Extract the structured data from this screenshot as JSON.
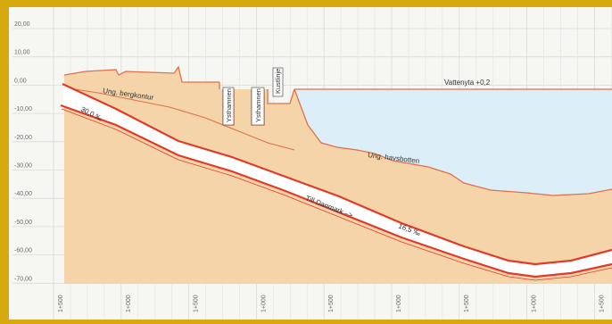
{
  "diagram": {
    "y_ticks": [
      "20,00",
      "10,00",
      "0,00",
      "-10,00",
      "-20,00",
      "-30,00",
      "-40,00",
      "-50,00",
      "-60,00",
      "-70,00"
    ],
    "x_ticks": [
      "1+500",
      "1+000",
      "1+500",
      "1+000",
      "1+500",
      "1+000",
      "1+500",
      "1+000",
      "1+500"
    ],
    "labels": {
      "vattenyta": "Vattenyta +0,2",
      "bergkontur": "Ung. bergkontur",
      "havsbotten": "Ung. havsbotten",
      "ysthamnen1": "Ysthamnen",
      "ysthamnen2": "Ysthamnen",
      "kustlinje": "Kustlinje",
      "slope_left": "30,0 ‰",
      "to_denmark": "Till Danmark –>",
      "slope_right": "16,5 ‰"
    },
    "colors": {
      "frame": "#d6a90f",
      "paper": "#f6f6f3",
      "ground": "#f5d4a9",
      "ground_edge": "#e1704a",
      "water": "#dceff8",
      "tunnel_line": "#e33a27",
      "grid": "#d9d9d9",
      "tick_text": "#6a6a6a"
    }
  }
}
